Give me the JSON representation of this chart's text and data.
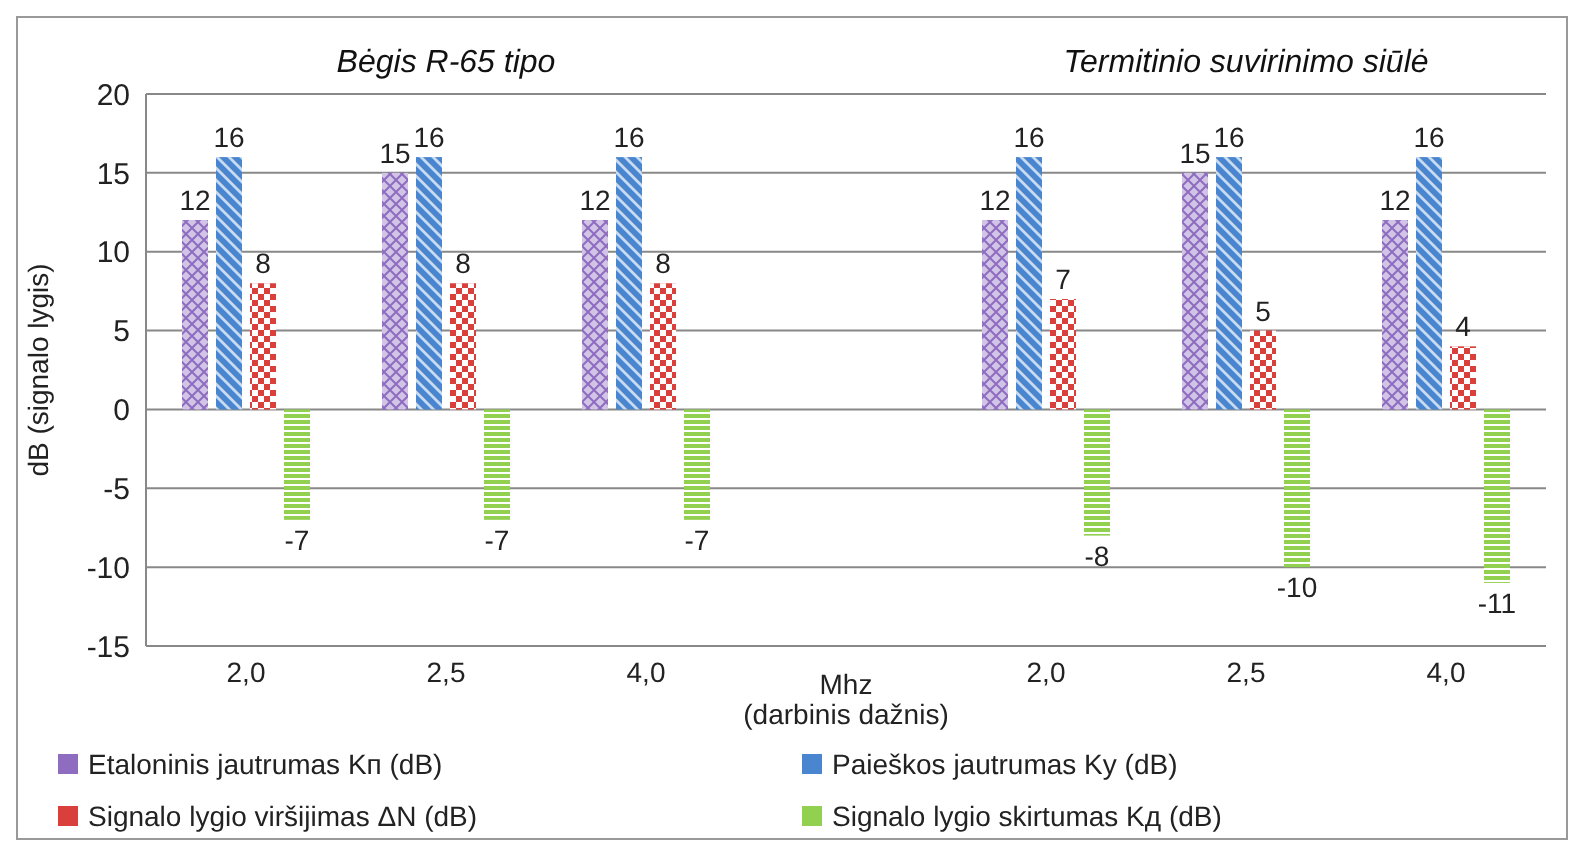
{
  "chart_data": {
    "type": "bar",
    "categories": [
      "2,0",
      "2,5",
      "4,0",
      null,
      "2,0",
      "2,5",
      "4,0"
    ],
    "xlabel": "Mhz (darbinis dažnis)",
    "ylabel": "dB (signalo lygis)",
    "annotations": [
      "Bėgis R-65 tipo",
      "Termitinio suvirinimo siūlė"
    ],
    "series": [
      {
        "name": "Etaloninis jautrumas Kп (dB)",
        "color": "#8e6cc0",
        "values": [
          12,
          15,
          12,
          null,
          12,
          15,
          12
        ]
      },
      {
        "name": "Paieškos jautrumas Kу (dB)",
        "color": "#4a86d0",
        "values": [
          16,
          16,
          16,
          null,
          16,
          16,
          16
        ]
      },
      {
        "name": "Signalo lygio viršijimas ΔN (dB)",
        "color": "#d9403c",
        "values": [
          8,
          8,
          8,
          null,
          7,
          5,
          4
        ]
      },
      {
        "name": "Signalo lygio skirtumas Kд (dB)",
        "color": "#92d050",
        "values": [
          -7,
          -7,
          -7,
          null,
          -8,
          -10,
          -11
        ]
      }
    ],
    "ylim": [
      -15,
      20
    ],
    "yticks": [
      -15,
      -10,
      -5,
      0,
      5,
      10,
      15,
      20
    ],
    "grid": "y",
    "legend": "bottom",
    "data_labels": true
  }
}
